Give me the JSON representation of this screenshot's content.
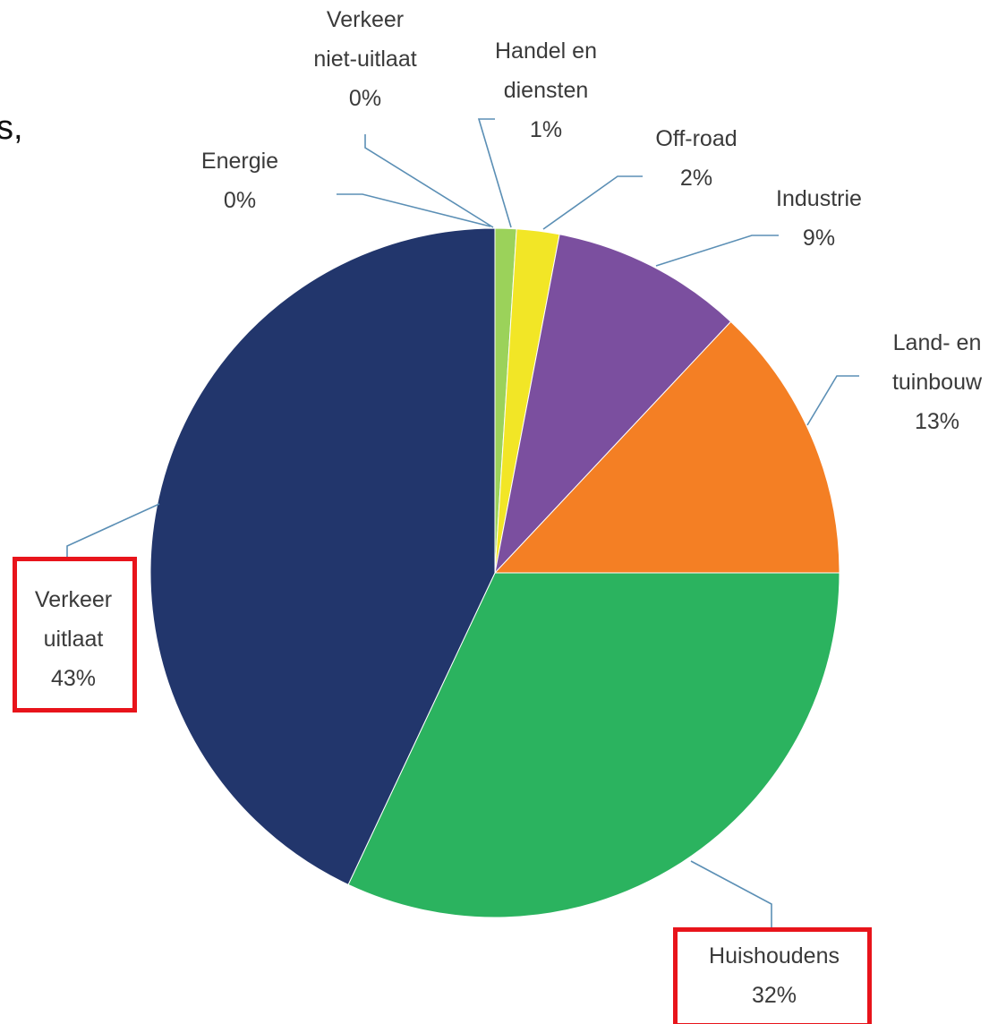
{
  "chart_data": {
    "type": "pie",
    "annotations": [
      "s,"
    ],
    "categories": [
      "Energie",
      "Verkeer\nniet-uitlaat",
      "Handel en\ndiensten",
      "Off-road",
      "Industrie",
      "Land- en\ntuinbouw",
      "Huishoudens",
      "Verkeer\nuitlaat"
    ],
    "values": [
      0,
      0,
      1,
      2,
      9,
      13,
      32,
      43
    ],
    "value_labels": [
      "0%",
      "0%",
      "1%",
      "2%",
      "9%",
      "13%",
      "32%",
      "43%"
    ],
    "colors": [
      "#e5262b",
      "#c0392b",
      "#9bd25a",
      "#f2e626",
      "#7b4f9f",
      "#f47f24",
      "#2bb35f",
      "#22366c"
    ]
  }
}
